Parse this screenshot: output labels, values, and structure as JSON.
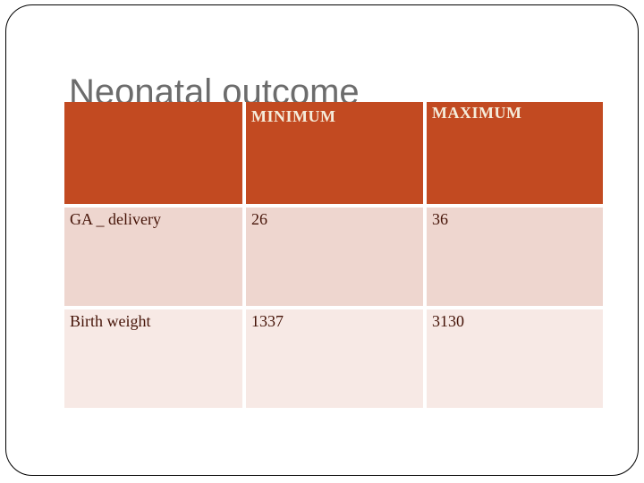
{
  "slide": {
    "title": "Neonatal outcome",
    "table": {
      "columns": [
        "",
        "MINIMUM",
        "MAXIMUM"
      ],
      "rows": [
        {
          "label": "GA _ delivery",
          "minimum": "26",
          "maximum": "36"
        },
        {
          "label": "Birth weight",
          "minimum": "1337",
          "maximum": "3130"
        }
      ]
    },
    "colors": {
      "header_bg": "#c24a21",
      "header_text": "#f5ecda",
      "row1_bg": "#eed6cf",
      "row2_bg": "#f7e9e5",
      "cell_text": "#451307",
      "title_text": "#6c6c6c",
      "border": "#000000"
    }
  }
}
